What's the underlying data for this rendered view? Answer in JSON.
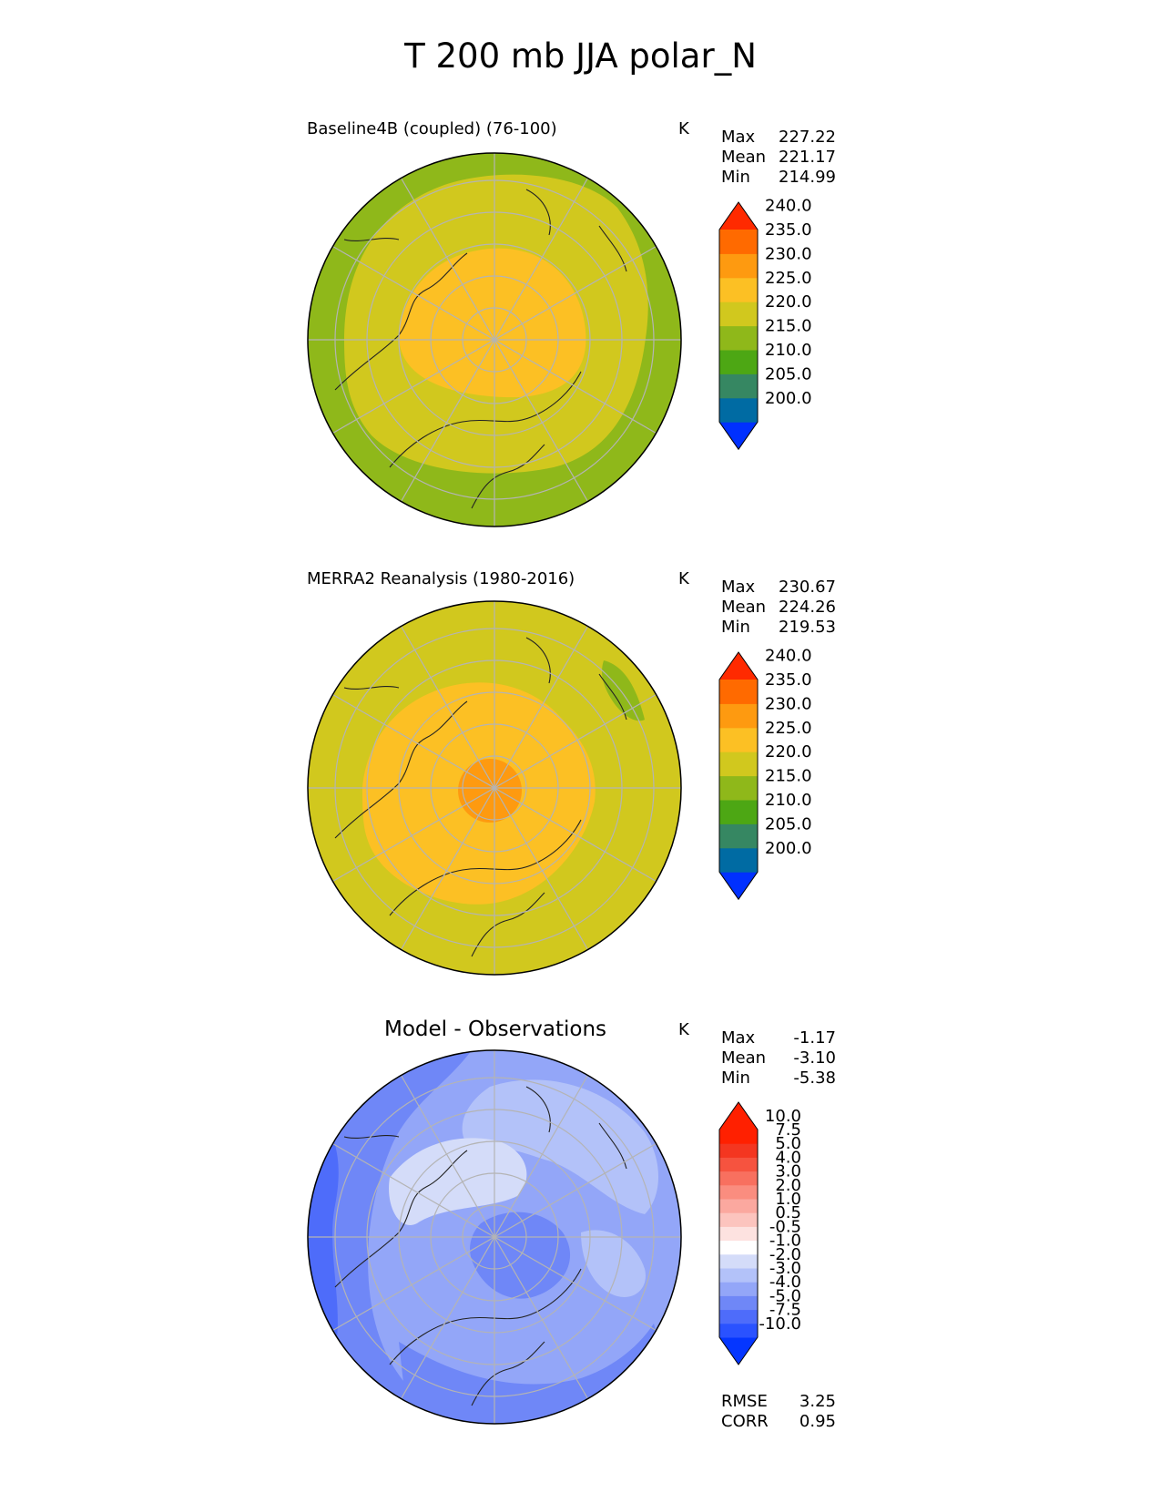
{
  "figure_title": "T 200 mb JJA polar_N",
  "chart_data": [
    {
      "type": "heatmap",
      "projection": "north-polar-stereographic",
      "title": "Baseline4B (coupled) (76-100)",
      "units": "K",
      "stats": {
        "max_label": "Max",
        "max": "227.22",
        "mean_label": "Mean",
        "mean": "221.17",
        "min_label": "Min",
        "min": "214.99"
      },
      "levels": [
        "200.0",
        "205.0",
        "210.0",
        "215.0",
        "220.0",
        "225.0",
        "230.0",
        "235.0",
        "240.0"
      ],
      "colors": [
        "#0030ff",
        "#006ba3",
        "#368762",
        "#4da714",
        "#8fb81a",
        "#d1c81e",
        "#fcc024",
        "#fe9a10",
        "#ff6a00",
        "#ff2a00"
      ],
      "zones": [
        {
          "range": "215-220",
          "color": "#8fb81a",
          "region": "outer ring"
        },
        {
          "range": "220-225",
          "color": "#d1c81e",
          "region": "mid latitudes"
        },
        {
          "range": "225-230",
          "color": "#fcc024",
          "region": "polar cap"
        }
      ]
    },
    {
      "type": "heatmap",
      "projection": "north-polar-stereographic",
      "title": "MERRA2 Reanalysis (1980-2016)",
      "units": "K",
      "stats": {
        "max_label": "Max",
        "max": "230.67",
        "mean_label": "Mean",
        "mean": "224.26",
        "min_label": "Min",
        "min": "219.53"
      },
      "levels": [
        "200.0",
        "205.0",
        "210.0",
        "215.0",
        "220.0",
        "225.0",
        "230.0",
        "235.0",
        "240.0"
      ],
      "colors": [
        "#0030ff",
        "#006ba3",
        "#368762",
        "#4da714",
        "#8fb81a",
        "#d1c81e",
        "#fcc024",
        "#fe9a10",
        "#ff6a00",
        "#ff2a00"
      ],
      "zones": [
        {
          "range": "220-225",
          "color": "#d1c81e",
          "region": "outer area"
        },
        {
          "range": "225-230",
          "color": "#fcc024",
          "region": "polar cap"
        },
        {
          "range": "230-235",
          "color": "#fe9a10",
          "region": "pole"
        },
        {
          "range": "215-220",
          "color": "#8fb81a",
          "region": "small patch near Bering"
        }
      ]
    },
    {
      "type": "heatmap",
      "projection": "north-polar-stereographic",
      "title": "Model - Observations",
      "units": "K",
      "stats": {
        "max_label": "Max",
        "max": "-1.17",
        "mean_label": "Mean",
        "mean": "-3.10",
        "min_label": "Min",
        "min": "-5.38"
      },
      "levels": [
        "-10.0",
        "-7.5",
        "-5.0",
        "-4.0",
        "-3.0",
        "-2.0",
        "-1.0",
        "-0.5",
        "0.5",
        "1.0",
        "2.0",
        "3.0",
        "4.0",
        "5.0",
        "7.5",
        "10.0"
      ],
      "colors": [
        "#0536ff",
        "#2a52ff",
        "#4e6cfa",
        "#6f87f7",
        "#93a6f8",
        "#b3c2f9",
        "#d4dcf9",
        "#ffffff",
        "#fde2e0",
        "#fcc4be",
        "#fba89f",
        "#fa8d7f",
        "#f8705f",
        "#f6533f",
        "#f43620",
        "#ff2000",
        "#ff2000"
      ],
      "metrics": {
        "rmse_label": "RMSE",
        "rmse": "3.25",
        "corr_label": "CORR",
        "corr": "0.95"
      }
    }
  ]
}
